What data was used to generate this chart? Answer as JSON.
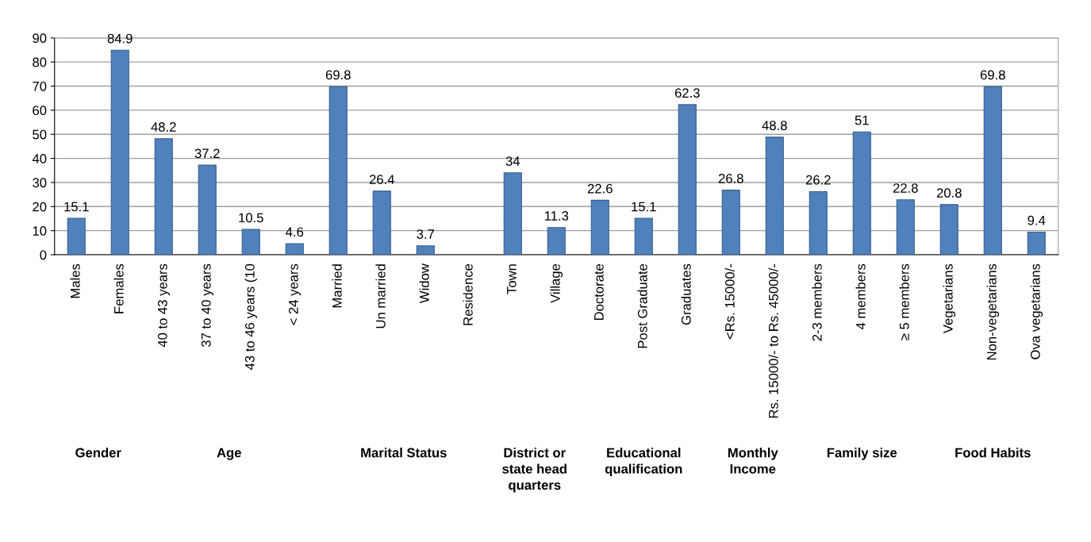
{
  "chart_data": {
    "type": "bar",
    "categories": [
      "Males",
      "Females",
      "40 to 43 years",
      "37 to 40 years",
      "43 to 46 years (10",
      "< 24 years",
      "Married",
      "Un married",
      "Widow",
      "Residence",
      "Town",
      "Village",
      "Doctorate",
      "Post Graduate",
      "Graduates",
      "<Rs. 15000/-",
      "Rs. 15000/- to Rs. 45000/-",
      "2-3 members",
      "4 members",
      "≥ 5 members",
      "Vegetarians",
      "Non-vegetarians",
      "Ova vegetarians"
    ],
    "values": [
      15.1,
      84.9,
      48.2,
      37.2,
      10.5,
      4.6,
      69.8,
      26.4,
      3.7,
      null,
      34,
      11.3,
      22.6,
      15.1,
      62.3,
      26.8,
      48.8,
      26.2,
      51,
      22.8,
      20.8,
      69.8,
      9.4
    ],
    "color": "#4f81bd",
    "ylim": [
      0,
      90
    ],
    "yticks": [
      0,
      10,
      20,
      30,
      40,
      50,
      60,
      70,
      80,
      90
    ],
    "grid": "y",
    "data_labels": true,
    "legend": false,
    "annotations": [
      "Gender",
      "Age",
      "Marital Status",
      "District or\nstate head\nquarters",
      "Educational\nqualification",
      "Monthly\nIncome",
      "Family size",
      "Food Habits"
    ]
  }
}
